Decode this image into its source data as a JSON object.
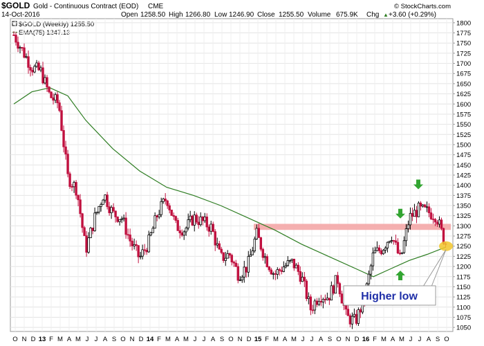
{
  "header": {
    "symbol": "$GOLD",
    "name": "Gold - Continuous Contract (EOD)",
    "exchange": "CME",
    "copyright": "© StockCharts.com",
    "date": "14-Oct-2016",
    "open_label": "Open",
    "open_value": "1258.50",
    "high_label": "High",
    "high_value": "1266.80",
    "low_label": "Low",
    "low_value": "1246.90",
    "close_label": "Close",
    "close_value": "1255.50",
    "volume_label": "Volume",
    "volume_value": "675.9K",
    "chg_label": "Chg",
    "chg_value": "+3.60 (+0.29%)",
    "chg_arrow": "▲"
  },
  "legend": [
    {
      "label": "$GOLD (Weekly) 1255.50",
      "color": "#000000"
    },
    {
      "label": "EMA(75) 1247.13",
      "color": "#2e7d22"
    }
  ],
  "annotation": {
    "text": "Higher low",
    "color": "#1f2fa8"
  },
  "colors": {
    "candle_up": "#000000",
    "candle_down": "#c0103f",
    "ema": "#2e7d22",
    "resistance_band": "#f4a7a7",
    "arrow": "#33a532",
    "highlight": "#f2c62c"
  },
  "chart_data": {
    "type": "candlestick",
    "x_tick_labels": [
      "O",
      "N",
      "D",
      "13",
      "F",
      "M",
      "A",
      "M",
      "J",
      "J",
      "A",
      "S",
      "O",
      "N",
      "D",
      "14",
      "F",
      "M",
      "A",
      "M",
      "J",
      "J",
      "A",
      "S",
      "O",
      "N",
      "D",
      "15",
      "F",
      "M",
      "A",
      "M",
      "J",
      "J",
      "A",
      "S",
      "O",
      "N",
      "D",
      "16",
      "F",
      "M",
      "A",
      "M",
      "J",
      "J",
      "A",
      "S",
      "O"
    ],
    "y_ticks": [
      1050,
      1075,
      1100,
      1125,
      1150,
      1175,
      1200,
      1225,
      1250,
      1275,
      1300,
      1325,
      1350,
      1375,
      1400,
      1425,
      1450,
      1475,
      1500,
      1525,
      1550,
      1575,
      1600,
      1625,
      1650,
      1675,
      1700,
      1725,
      1750,
      1775,
      1800
    ],
    "ylim": [
      1040,
      1810
    ],
    "resistance_band": [
      1290,
      1305
    ],
    "series": [
      {
        "name": "$GOLD (Weekly)",
        "type": "candlestick",
        "ohlc_anchors": [
          [
            "2012-10",
            1770
          ],
          [
            "2012-11",
            1730
          ],
          [
            "2012-12",
            1690
          ],
          [
            "2013-01",
            1680
          ],
          [
            "2013-02",
            1620
          ],
          [
            "2013-03",
            1600
          ],
          [
            "2013-04",
            1420
          ],
          [
            "2013-05",
            1390
          ],
          [
            "2013-06",
            1240
          ],
          [
            "2013-07",
            1320
          ],
          [
            "2013-08",
            1380
          ],
          [
            "2013-09",
            1330
          ],
          [
            "2013-10",
            1320
          ],
          [
            "2013-11",
            1260
          ],
          [
            "2013-12",
            1220
          ],
          [
            "2014-01",
            1260
          ],
          [
            "2014-02",
            1330
          ],
          [
            "2014-03",
            1370
          ],
          [
            "2014-04",
            1300
          ],
          [
            "2014-05",
            1290
          ],
          [
            "2014-06",
            1320
          ],
          [
            "2014-07",
            1310
          ],
          [
            "2014-08",
            1295
          ],
          [
            "2014-09",
            1220
          ],
          [
            "2014-10",
            1230
          ],
          [
            "2014-11",
            1180
          ],
          [
            "2014-12",
            1200
          ],
          [
            "2015-01",
            1280
          ],
          [
            "2015-02",
            1220
          ],
          [
            "2015-03",
            1180
          ],
          [
            "2015-04",
            1200
          ],
          [
            "2015-05",
            1210
          ],
          [
            "2015-06",
            1175
          ],
          [
            "2015-07",
            1095
          ],
          [
            "2015-08",
            1130
          ],
          [
            "2015-09",
            1125
          ],
          [
            "2015-10",
            1170
          ],
          [
            "2015-11",
            1075
          ],
          [
            "2015-12",
            1065
          ],
          [
            "2016-01",
            1120
          ],
          [
            "2016-02",
            1230
          ],
          [
            "2016-03",
            1245
          ],
          [
            "2016-04",
            1280
          ],
          [
            "2016-05",
            1215
          ],
          [
            "2016-06",
            1320
          ],
          [
            "2016-07",
            1340
          ],
          [
            "2016-08",
            1335
          ],
          [
            "2016-09",
            1325
          ],
          [
            "2016-10",
            1255
          ]
        ],
        "last_close": 1255.5
      },
      {
        "name": "EMA(75)",
        "type": "line",
        "points": [
          [
            "2012-10",
            1600
          ],
          [
            "2012-12",
            1630
          ],
          [
            "2013-02",
            1640
          ],
          [
            "2013-04",
            1620
          ],
          [
            "2013-06",
            1560
          ],
          [
            "2013-09",
            1490
          ],
          [
            "2013-12",
            1435
          ],
          [
            "2014-03",
            1395
          ],
          [
            "2014-06",
            1375
          ],
          [
            "2014-09",
            1350
          ],
          [
            "2014-12",
            1320
          ],
          [
            "2015-03",
            1290
          ],
          [
            "2015-06",
            1255
          ],
          [
            "2015-09",
            1225
          ],
          [
            "2015-12",
            1195
          ],
          [
            "2016-02",
            1175
          ],
          [
            "2016-04",
            1195
          ],
          [
            "2016-06",
            1215
          ],
          [
            "2016-08",
            1230
          ],
          [
            "2016-10",
            1247.13
          ]
        ]
      }
    ],
    "markers": [
      {
        "type": "arrow-down",
        "date": "2016-05",
        "value": 1318
      },
      {
        "type": "arrow-down",
        "date": "2016-07",
        "value": 1390
      },
      {
        "type": "arrow-up",
        "date": "2016-05",
        "value": 1190
      }
    ],
    "highlight": {
      "date": "2016-10",
      "value": 1250
    },
    "legend_position": "top-left"
  }
}
